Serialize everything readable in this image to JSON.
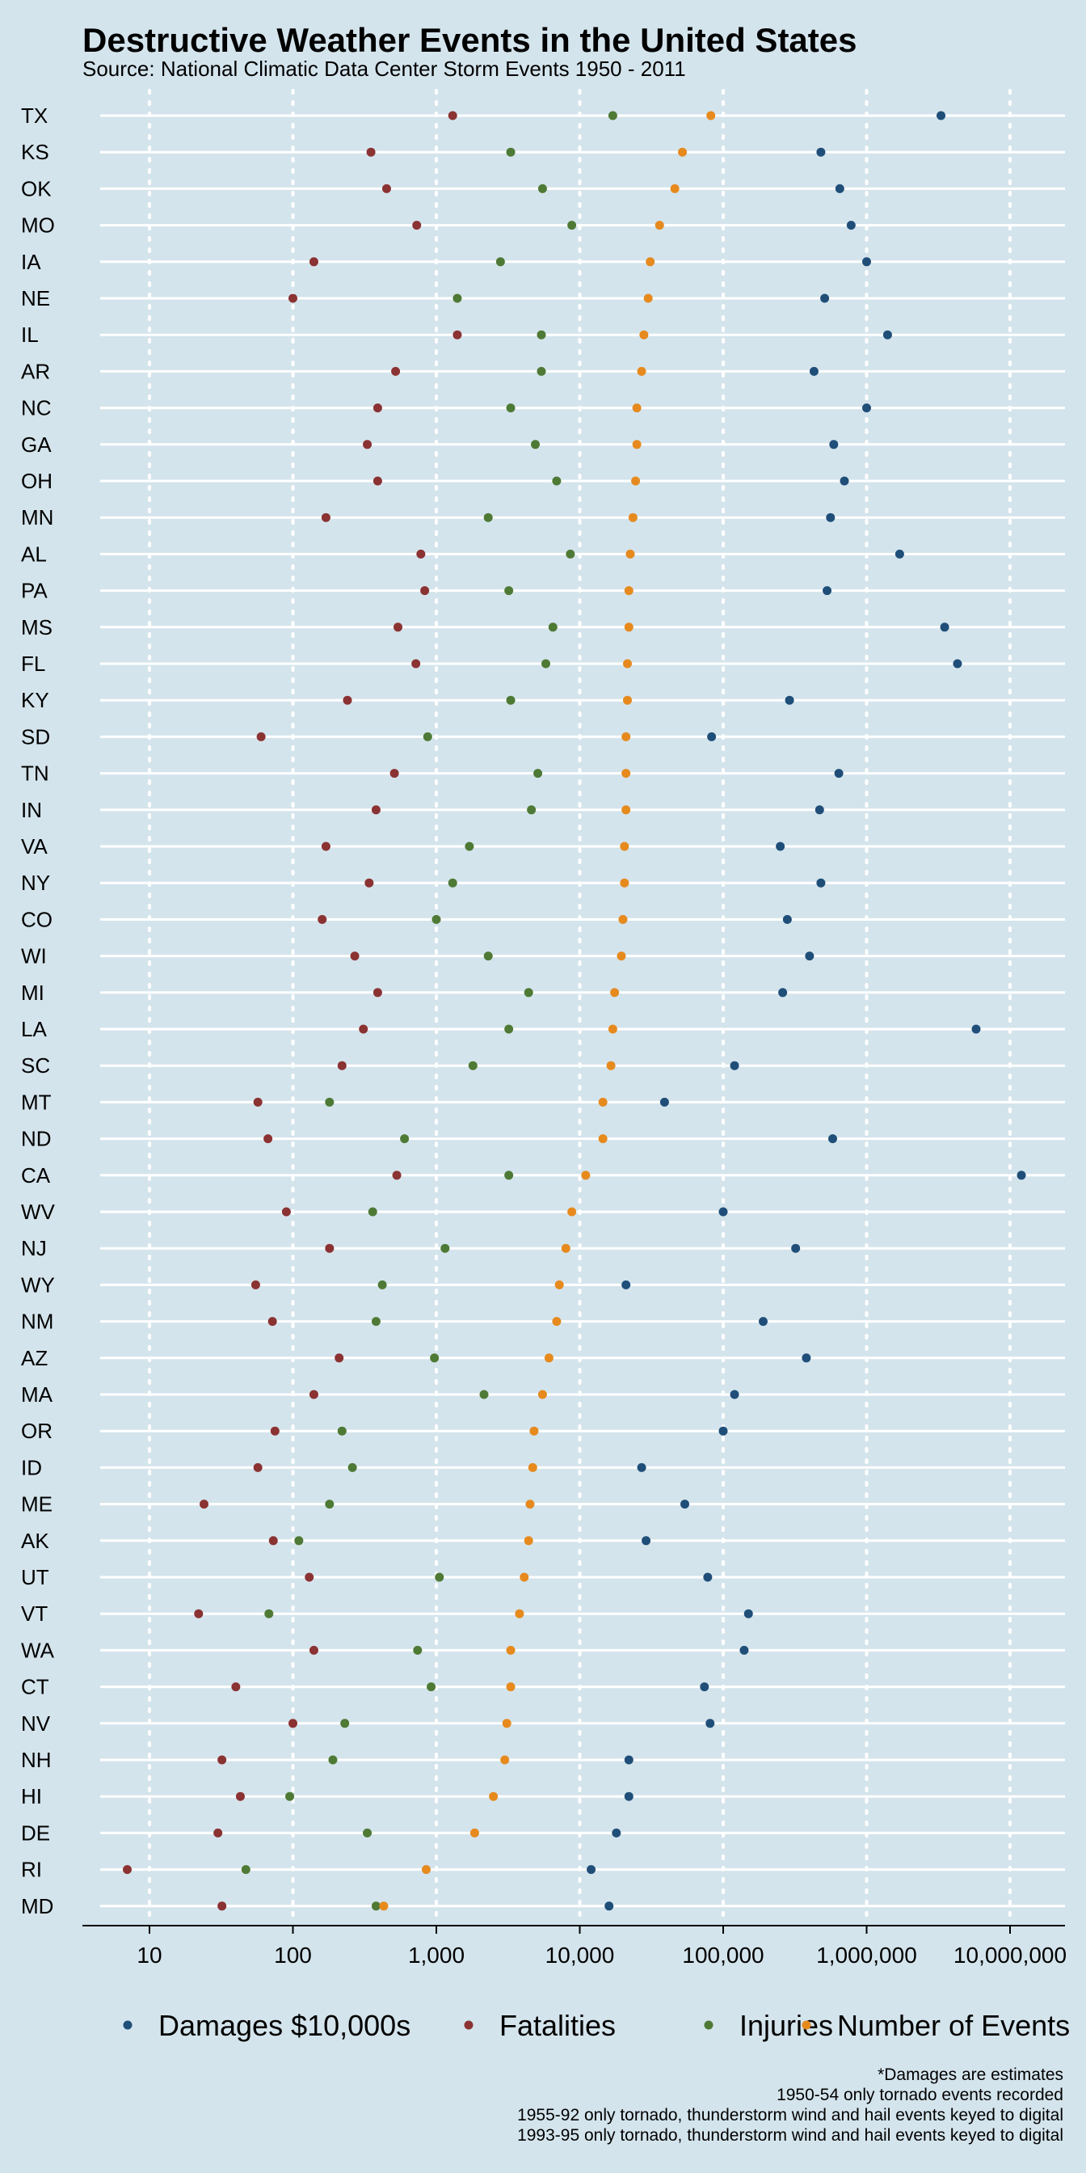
{
  "chart_data": {
    "type": "scatter",
    "title": "Destructive Weather Events in the United States",
    "subtitle": "Source: National Climatic Data Center Storm Events 1950 - 2011",
    "x_scale": "log10",
    "xlim": [
      3,
      25000000
    ],
    "x_ticks": [
      10,
      100,
      1000,
      10000,
      100000,
      1000000,
      10000000
    ],
    "x_tick_labels": [
      "10",
      "100",
      "1,000",
      "10,000",
      "100,000",
      "1,000,000",
      "10,000,000"
    ],
    "categories": [
      "TX",
      "KS",
      "OK",
      "MO",
      "IA",
      "NE",
      "IL",
      "AR",
      "NC",
      "GA",
      "OH",
      "MN",
      "AL",
      "PA",
      "MS",
      "FL",
      "KY",
      "SD",
      "TN",
      "IN",
      "VA",
      "NY",
      "CO",
      "WI",
      "MI",
      "LA",
      "SC",
      "MT",
      "ND",
      "CA",
      "WV",
      "NJ",
      "WY",
      "NM",
      "AZ",
      "MA",
      "OR",
      "ID",
      "ME",
      "AK",
      "UT",
      "VT",
      "WA",
      "CT",
      "NV",
      "NH",
      "HI",
      "DE",
      "RI",
      "MD"
    ],
    "legend_position": "bottom",
    "grid": true,
    "series": [
      {
        "name": "Damages $10,000s",
        "color": "#1f4e79",
        "values": [
          3300000,
          480000,
          650000,
          780000,
          1000000,
          510000,
          1400000,
          430000,
          1000000,
          590000,
          700000,
          560000,
          1700000,
          530000,
          3500000,
          4300000,
          290000,
          83000,
          640000,
          470000,
          250000,
          480000,
          280000,
          400000,
          260000,
          5800000,
          120000,
          39000,
          580000,
          12000000,
          100000,
          320000,
          21000,
          190000,
          380000,
          120000,
          100000,
          27000,
          54000,
          29000,
          78000,
          150000,
          140000,
          74000,
          81000,
          22000,
          22000,
          18000,
          12000,
          16000
        ]
      },
      {
        "name": "Fatalities",
        "color": "#8b3232",
        "values": [
          1300,
          350,
          450,
          730,
          140,
          100,
          1400,
          520,
          390,
          330,
          390,
          170,
          780,
          830,
          540,
          720,
          240,
          60,
          510,
          380,
          170,
          340,
          160,
          270,
          390,
          310,
          220,
          57,
          67,
          530,
          90,
          180,
          55,
          72,
          210,
          140,
          75,
          57,
          24,
          73,
          130,
          22,
          140,
          40,
          100,
          32,
          43,
          30,
          7,
          32
        ]
      },
      {
        "name": "Injuries",
        "color": "#4e7a35",
        "values": [
          17000,
          3300,
          5500,
          8800,
          2800,
          1400,
          5400,
          5400,
          3300,
          4900,
          6900,
          2300,
          8600,
          3200,
          6500,
          5800,
          3300,
          870,
          5100,
          4600,
          1700,
          1300,
          1000,
          2300,
          4400,
          3200,
          1800,
          180,
          600,
          3200,
          360,
          1150,
          420,
          380,
          970,
          2150,
          220,
          260,
          180,
          110,
          1050,
          68,
          740,
          920,
          230,
          190,
          95,
          330,
          47,
          380
        ]
      },
      {
        "name": "Number of Events",
        "color": "#e68a1e",
        "values": [
          82000,
          52000,
          46000,
          36000,
          31000,
          30000,
          28000,
          27000,
          25000,
          25000,
          24500,
          23500,
          22500,
          22000,
          22000,
          21500,
          21500,
          21000,
          21000,
          21000,
          20500,
          20500,
          20000,
          19500,
          17500,
          17000,
          16500,
          14500,
          14500,
          11000,
          8800,
          8000,
          7200,
          6900,
          6100,
          5500,
          4800,
          4700,
          4500,
          4400,
          4100,
          3800,
          3300,
          3300,
          3100,
          3000,
          2500,
          1850,
          850,
          430
        ]
      }
    ],
    "footnotes": [
      "*Damages are estimates",
      "1950-54 only tornado events recorded",
      "1955-92 only tornado, thunderstorm wind and hail events keyed to digital",
      "1993-95 only tornado, thunderstorm wind and hail events keyed to digital"
    ]
  }
}
